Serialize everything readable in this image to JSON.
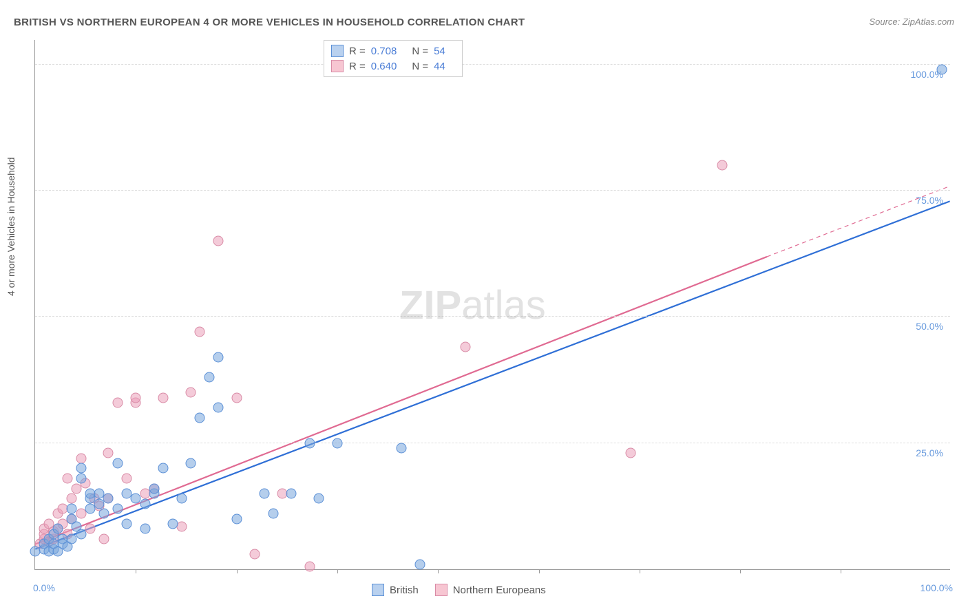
{
  "title": "BRITISH VS NORTHERN EUROPEAN 4 OR MORE VEHICLES IN HOUSEHOLD CORRELATION CHART",
  "source_label": "Source: ZipAtlas.com",
  "ylabel": "4 or more Vehicles in Household",
  "watermark_bold": "ZIP",
  "watermark_rest": "atlas",
  "x_axis": {
    "min": 0,
    "max": 100,
    "origin_label": "0.0%",
    "end_label": "100.0%",
    "ticks": [
      11,
      22,
      33,
      44,
      55,
      66,
      77,
      88
    ]
  },
  "y_axis": {
    "min": 0,
    "max": 105,
    "gridlines": [
      {
        "v": 25,
        "label": "25.0%"
      },
      {
        "v": 50,
        "label": "50.0%"
      },
      {
        "v": 75,
        "label": "75.0%"
      },
      {
        "v": 100,
        "label": "100.0%"
      }
    ]
  },
  "stats": [
    {
      "color_fill": "#b9d1ef",
      "color_border": "#5a8fd6",
      "r": "0.708",
      "n": "54"
    },
    {
      "color_fill": "#f7c6d2",
      "color_border": "#d98ba6",
      "r": "0.640",
      "n": "44"
    }
  ],
  "legend_bottom": [
    {
      "label": "British",
      "color_fill": "#b9d1ef",
      "color_border": "#5a8fd6"
    },
    {
      "label": "Northern Europeans",
      "color_fill": "#f7c6d2",
      "color_border": "#d98ba6"
    }
  ],
  "series": {
    "british": {
      "marker_fill": "rgba(120,165,220,0.55)",
      "marker_border": "#5a8fd6",
      "marker_size": 15,
      "trend_color": "#2f6fd6",
      "trend_width": 2.2,
      "trend_from": [
        0,
        4
      ],
      "trend_to": [
        100,
        73
      ],
      "trend_dash_from": null,
      "points": [
        [
          0,
          3.5
        ],
        [
          1,
          4
        ],
        [
          1,
          5
        ],
        [
          1.5,
          3.5
        ],
        [
          1.5,
          6
        ],
        [
          2,
          4
        ],
        [
          2,
          5
        ],
        [
          2,
          7
        ],
        [
          2.5,
          3.5
        ],
        [
          2.5,
          8
        ],
        [
          3,
          6
        ],
        [
          3,
          5
        ],
        [
          3.5,
          4.5
        ],
        [
          4,
          6
        ],
        [
          4,
          10
        ],
        [
          4,
          12
        ],
        [
          4.5,
          8.5
        ],
        [
          5,
          7
        ],
        [
          5,
          18
        ],
        [
          5,
          20
        ],
        [
          6,
          12
        ],
        [
          6,
          14
        ],
        [
          6,
          15
        ],
        [
          7,
          13
        ],
        [
          7,
          15
        ],
        [
          7.5,
          11
        ],
        [
          8,
          14
        ],
        [
          9,
          12
        ],
        [
          9,
          21
        ],
        [
          10,
          9
        ],
        [
          10,
          15
        ],
        [
          11,
          14
        ],
        [
          12,
          8
        ],
        [
          12,
          13
        ],
        [
          13,
          15
        ],
        [
          13,
          16
        ],
        [
          14,
          20
        ],
        [
          15,
          9
        ],
        [
          16,
          14
        ],
        [
          17,
          21
        ],
        [
          18,
          30
        ],
        [
          19,
          38
        ],
        [
          20,
          32
        ],
        [
          20,
          42
        ],
        [
          22,
          10
        ],
        [
          25,
          15
        ],
        [
          26,
          11
        ],
        [
          28,
          15
        ],
        [
          30,
          25
        ],
        [
          31,
          14
        ],
        [
          33,
          25
        ],
        [
          42,
          1
        ],
        [
          40,
          24
        ],
        [
          99,
          99
        ]
      ]
    },
    "northern": {
      "marker_fill": "rgba(235,160,185,0.55)",
      "marker_border": "#d98ba6",
      "marker_size": 15,
      "trend_color": "#e06a92",
      "trend_width": 2.2,
      "trend_from": [
        0,
        5
      ],
      "trend_to": [
        80,
        62
      ],
      "trend_dash_to": [
        100,
        76
      ],
      "points": [
        [
          0.5,
          5
        ],
        [
          1,
          6
        ],
        [
          1,
          7
        ],
        [
          1,
          8
        ],
        [
          1.5,
          5.5
        ],
        [
          1.5,
          9
        ],
        [
          2,
          6
        ],
        [
          2,
          7.5
        ],
        [
          2.5,
          8
        ],
        [
          2.5,
          11
        ],
        [
          3,
          9
        ],
        [
          3,
          12
        ],
        [
          3.5,
          7
        ],
        [
          3.5,
          18
        ],
        [
          4,
          10
        ],
        [
          4,
          14
        ],
        [
          4.5,
          16
        ],
        [
          5,
          11
        ],
        [
          5,
          22
        ],
        [
          5.5,
          17
        ],
        [
          6,
          8
        ],
        [
          6.5,
          14
        ],
        [
          7,
          12.5
        ],
        [
          7.5,
          6
        ],
        [
          8,
          14
        ],
        [
          8,
          23
        ],
        [
          9,
          33
        ],
        [
          10,
          18
        ],
        [
          11,
          33
        ],
        [
          11,
          34
        ],
        [
          12,
          15
        ],
        [
          13,
          16
        ],
        [
          14,
          34
        ],
        [
          16,
          8.5
        ],
        [
          17,
          35
        ],
        [
          18,
          47
        ],
        [
          20,
          65
        ],
        [
          22,
          34
        ],
        [
          24,
          3
        ],
        [
          27,
          15
        ],
        [
          30,
          0.5
        ],
        [
          47,
          44
        ],
        [
          65,
          23
        ],
        [
          75,
          80
        ]
      ]
    }
  },
  "axis_label_color": "#6699dd"
}
